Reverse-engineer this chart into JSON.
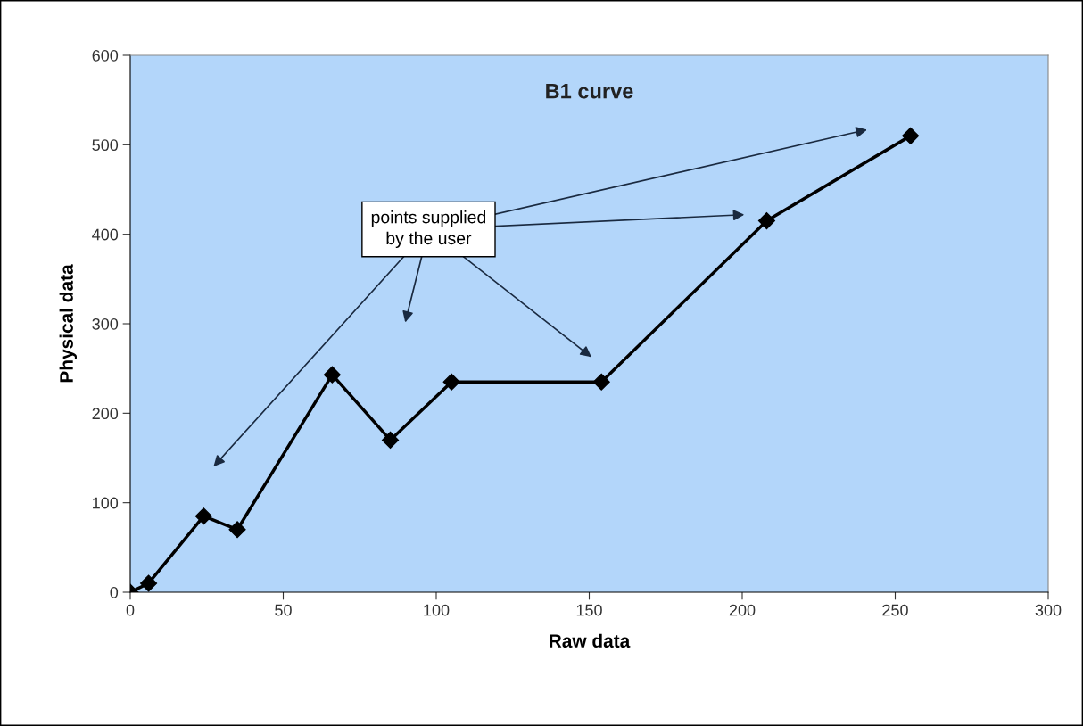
{
  "chart_data": {
    "type": "line",
    "title": "B1 curve",
    "xlabel": "Raw data",
    "ylabel": "Physical data",
    "x": [
      0,
      6,
      24,
      35,
      66,
      85,
      105,
      154,
      208,
      255
    ],
    "series": [
      {
        "color": "#000000",
        "values": [
          0,
          10,
          85,
          70,
          243,
          170,
          235,
          235,
          415,
          510
        ]
      }
    ],
    "xlim": [
      0,
      300
    ],
    "xticks": [
      0,
      50,
      100,
      150,
      200,
      250,
      300
    ],
    "ylim": [
      0,
      600
    ],
    "yticks": [
      0,
      100,
      200,
      300,
      400,
      500,
      600
    ],
    "marker": "diamond",
    "line_style": "solid",
    "grid": false,
    "legend": false,
    "annotations": [
      "points supplied\nby the user"
    ]
  }
}
